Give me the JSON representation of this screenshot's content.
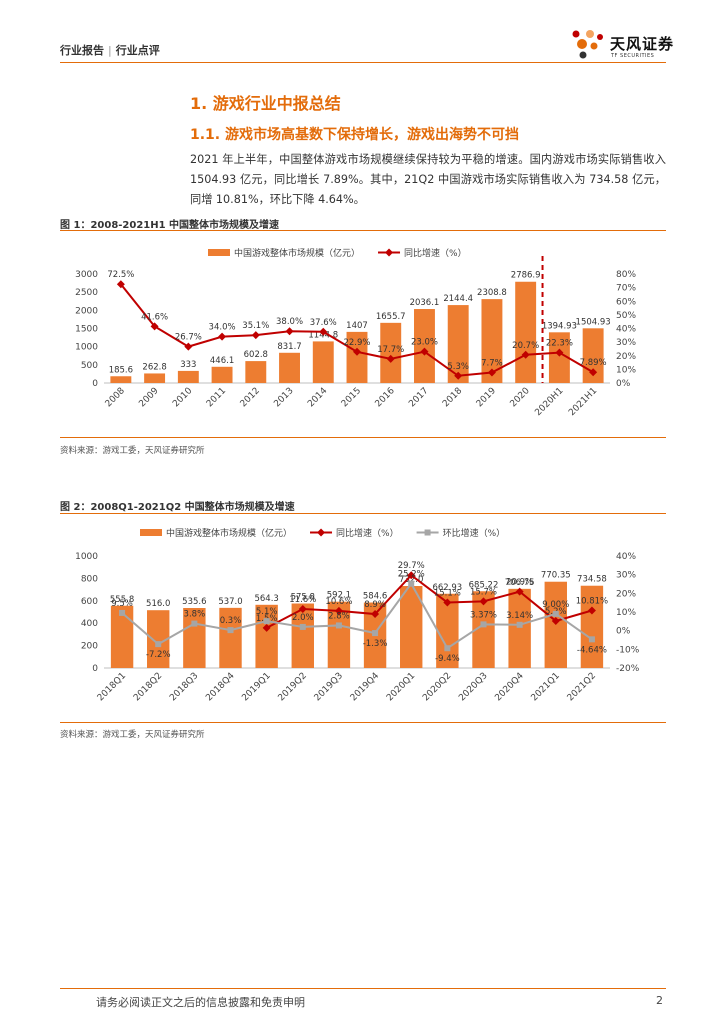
{
  "header": {
    "category": "行业报告",
    "subcategory": "行业点评",
    "logo_cn": "天风证券",
    "logo_en": "TF SECURITIES",
    "accent": "#e36c0a"
  },
  "section": {
    "h1": "1. 游戏行业中报总结",
    "h2": "1.1. 游戏市场高基数下保持增长，游戏出海势不可挡",
    "paragraph": "2021 年上半年，中国整体游戏市场规模继续保持较为平稳的增速。国内游戏市场实际销售收入 1504.93 亿元，同比增长 7.89%。其中，21Q2 中国游戏市场实际销售收入为 734.58 亿元，同增 10.81%，环比下降 4.64%。"
  },
  "figures": {
    "fig1_title": "图 1：2008-2021H1 中国整体市场规模及增速",
    "fig1_source": "资料来源：游戏工委，天风证券研究所",
    "fig2_title": "图 2：2008Q1-2021Q2 中国整体市场规模及增速",
    "fig2_source": "资料来源：游戏工委，天风证券研究所"
  },
  "footer": {
    "disclaimer": "请务必阅读正文之后的信息披露和免责申明",
    "page": "2"
  },
  "chart_data": [
    {
      "type": "bar",
      "title": "图 1：2008-2021H1 中国整体市场规模及增速",
      "categories": [
        "2008",
        "2009",
        "2010",
        "2011",
        "2012",
        "2013",
        "2014",
        "2015",
        "2016",
        "2017",
        "2018",
        "2019",
        "2020",
        "2020H1",
        "2021H1"
      ],
      "series": [
        {
          "name": "中国游戏整体市场规模（亿元）",
          "kind": "bar",
          "axis": "left",
          "values": [
            185.6,
            262.8,
            333,
            446.1,
            602.8,
            831.7,
            1144.8,
            1407,
            1655.7,
            2036.1,
            2144.4,
            2308.8,
            2786.9,
            1394.93,
            1504.93
          ],
          "labels": [
            "185.6",
            "262.8",
            "333",
            "446.1",
            "602.8",
            "831.7",
            "1144.8",
            "1407",
            "1655.7",
            "2036.1",
            "2144.4",
            "2308.8",
            "2786.9",
            "1394.93",
            "1504.93"
          ]
        },
        {
          "name": "同比增速（%）",
          "kind": "line",
          "axis": "right",
          "values": [
            72.5,
            41.6,
            26.7,
            34.0,
            35.1,
            38.0,
            37.6,
            22.9,
            17.7,
            23.0,
            5.3,
            7.7,
            20.7,
            22.3,
            7.89
          ],
          "labels": [
            "72.5%",
            "41.6%",
            "26.7%",
            "34.0%",
            "35.1%",
            "38.0%",
            "37.6%",
            "22.9%",
            "17.7%",
            "23.0%",
            "5.3%",
            "7.7%",
            "20.7%",
            "22.3%",
            "7.89%"
          ]
        }
      ],
      "yleft": {
        "min": 0,
        "max": 3000,
        "ticks": [
          "0",
          "500",
          "1000",
          "1500",
          "2000",
          "2500",
          "3000"
        ]
      },
      "yright": {
        "min": 0,
        "max": 80,
        "ticks": [
          "0%",
          "10%",
          "20%",
          "30%",
          "40%",
          "50%",
          "60%",
          "70%",
          "80%"
        ]
      },
      "divider_after_index": 12,
      "colors": {
        "bar": "#ed7d31",
        "line": "#c00000",
        "divider": "#c00000"
      }
    },
    {
      "type": "bar",
      "title": "图 2：2008Q1-2021Q2 中国整体市场规模及增速",
      "categories": [
        "2018Q1",
        "2018Q2",
        "2018Q3",
        "2018Q4",
        "2019Q1",
        "2019Q2",
        "2019Q3",
        "2019Q4",
        "2020Q1",
        "2020Q2",
        "2020Q3",
        "2020Q4",
        "2021Q1",
        "2021Q2"
      ],
      "series": [
        {
          "name": "中国游戏整体市场规模（亿元）",
          "kind": "bar",
          "axis": "left",
          "values": [
            555.8,
            516.0,
            535.6,
            537.0,
            564.3,
            575.8,
            592.1,
            584.6,
            732.0,
            662.93,
            685.22,
            706.75,
            770.35,
            734.58
          ],
          "labels": [
            "555.8",
            "516.0",
            "535.6",
            "537.0",
            "564.3",
            "575.8",
            "592.1",
            "584.6",
            "732.0",
            "662.93",
            "685.22",
            "706.75",
            "770.35",
            "734.58"
          ]
        },
        {
          "name": "同比增速（%）",
          "kind": "line",
          "axis": "right",
          "values": [
            null,
            null,
            null,
            null,
            1.5,
            11.6,
            10.6,
            8.9,
            29.7,
            15.1,
            15.7,
            20.9,
            5.2,
            10.81
          ],
          "labels": [
            "",
            "",
            "",
            "",
            "1.5%",
            "11.6%",
            "10.6%",
            "8.9%",
            "29.7%",
            "15.1%",
            "15.7%",
            "20.9%",
            "5.2%",
            "10.81%"
          ]
        },
        {
          "name": "环比增速（%）",
          "kind": "line",
          "axis": "right",
          "values": [
            9.5,
            -7.2,
            3.8,
            0.3,
            5.1,
            2.0,
            2.8,
            -1.3,
            25.2,
            -9.4,
            3.37,
            3.14,
            9.0,
            -4.64
          ],
          "labels": [
            "9.5%",
            "-7.2%",
            "3.8%",
            "0.3%",
            "5.1%",
            "2.0%",
            "2.8%",
            "-1.3%",
            "25.2%",
            "-9.4%",
            "3.37%",
            "3.14%",
            "9.00%",
            "-4.64%"
          ]
        }
      ],
      "yleft": {
        "min": 0,
        "max": 1000,
        "ticks": [
          "0",
          "200",
          "400",
          "600",
          "800",
          "1000"
        ]
      },
      "yright": {
        "min": -20,
        "max": 40,
        "ticks": [
          "-20%",
          "-10%",
          "0%",
          "10%",
          "20%",
          "30%",
          "40%"
        ]
      },
      "colors": {
        "bar": "#ed7d31",
        "yoy": "#c00000",
        "qoq": "#a6a6a6"
      }
    }
  ]
}
